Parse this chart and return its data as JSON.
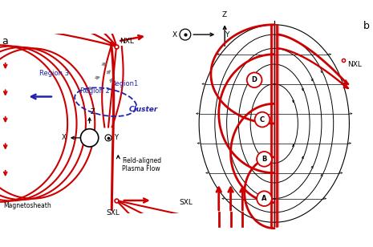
{
  "fig_width": 4.65,
  "fig_height": 3.08,
  "bg_color": "#ffffff",
  "red": "#cc0000",
  "gray": "#888888",
  "blue_dark": "#2222aa",
  "black": "#000000",
  "panel_a_label": "a",
  "panel_b_label": "b",
  "nxl_label": "NXL",
  "sxl_label": "SXL",
  "cluster_label": "Cluster",
  "region1_label": "Region1",
  "region2_label": "Region 2",
  "region3_label": "Region 3",
  "magnetosheath_label": "Magnetosheath",
  "field_aligned_label": "Field-aligned\nPlasma Flow",
  "labels_b": [
    "A",
    "B",
    "C",
    "D"
  ]
}
